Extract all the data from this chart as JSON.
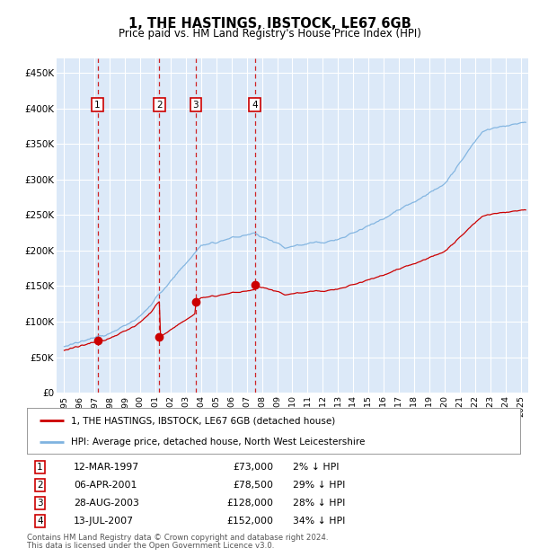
{
  "title": "1, THE HASTINGS, IBSTOCK, LE67 6GB",
  "subtitle": "Price paid vs. HM Land Registry's House Price Index (HPI)",
  "legend_line1": "1, THE HASTINGS, IBSTOCK, LE67 6GB (detached house)",
  "legend_line2": "HPI: Average price, detached house, North West Leicestershire",
  "footer1": "Contains HM Land Registry data © Crown copyright and database right 2024.",
  "footer2": "This data is licensed under the Open Government Licence v3.0.",
  "sales": [
    {
      "num": 1,
      "date": "12-MAR-1997",
      "price": 73000,
      "pct": "2%",
      "x_year": 1997.19
    },
    {
      "num": 2,
      "date": "06-APR-2001",
      "price": 78500,
      "pct": "29%",
      "x_year": 2001.26
    },
    {
      "num": 3,
      "date": "28-AUG-2003",
      "price": 128000,
      "pct": "28%",
      "x_year": 2003.65
    },
    {
      "num": 4,
      "date": "13-JUL-2007",
      "price": 152000,
      "pct": "34%",
      "x_year": 2007.53
    }
  ],
  "ylim": [
    0,
    470000
  ],
  "yticks": [
    0,
    50000,
    100000,
    150000,
    200000,
    250000,
    300000,
    350000,
    400000,
    450000
  ],
  "ytick_labels": [
    "£0",
    "£50K",
    "£100K",
    "£150K",
    "£200K",
    "£250K",
    "£300K",
    "£350K",
    "£400K",
    "£450K"
  ],
  "xlim_start": 1994.5,
  "xlim_end": 2025.5,
  "background_color": "#dce9f8",
  "grid_color": "#ffffff",
  "sale_color": "#cc0000",
  "hpi_color": "#7fb3e0",
  "vline_color": "#cc0000",
  "marker_color": "#cc0000",
  "shade_color": "#c8ddf0"
}
